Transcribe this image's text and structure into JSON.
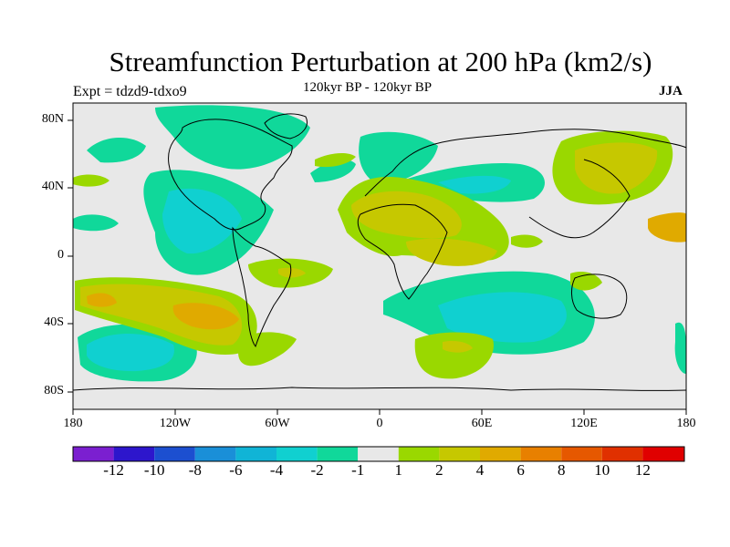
{
  "title": "Streamfunction Perturbation at 200 hPa (km2/s)",
  "left_label": "Expt = tdzd9-tdxo9",
  "center_label": "120kyr BP - 120kyr BP",
  "right_label": "JJA",
  "y_ticks": [
    "80N",
    "40N",
    "0",
    "40S",
    "80S"
  ],
  "x_ticks": [
    "180",
    "120W",
    "60W",
    "0",
    "60E",
    "120E",
    "180"
  ],
  "colorbar": {
    "colors": [
      "#7b1fd0",
      "#2d16cc",
      "#1c4fd0",
      "#1a8fd8",
      "#10b4d6",
      "#10d0d0",
      "#10d89a",
      "#e8e8e8",
      "#9ad800",
      "#c6c800",
      "#e0aa00",
      "#e88000",
      "#e65800",
      "#e03000",
      "#e00000"
    ],
    "labels": [
      "-12",
      "-10",
      "-8",
      "-6",
      "-4",
      "-2",
      "-1",
      "1",
      "2",
      "4",
      "6",
      "8",
      "10",
      "12"
    ]
  },
  "colors": {
    "background": "#e8e8e8",
    "coastline": "#000000"
  }
}
